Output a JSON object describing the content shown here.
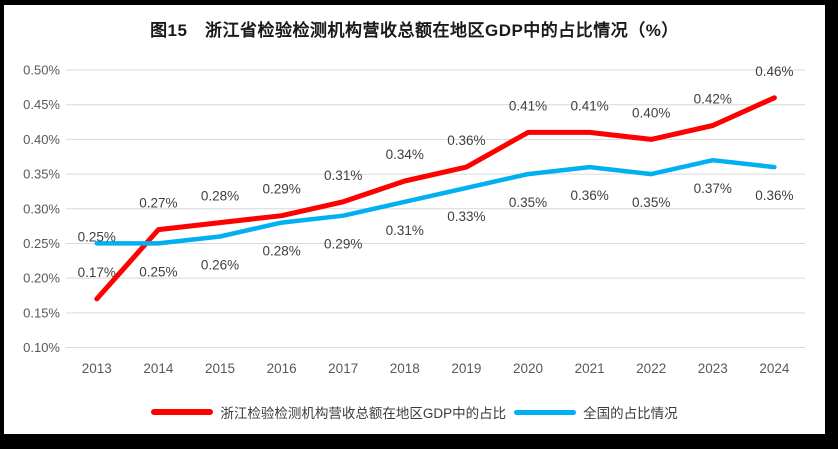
{
  "chart_data": {
    "type": "line",
    "title": "图15　浙江省检验检测机构营收总额在地区GDP中的占比情况（%）",
    "x": [
      "2013",
      "2014",
      "2015",
      "2016",
      "2017",
      "2018",
      "2019",
      "2020",
      "2021",
      "2022",
      "2023",
      "2024"
    ],
    "ylim": [
      0.1,
      0.5
    ],
    "ytick_labels": [
      "0.50%",
      "0.45%",
      "0.40%",
      "0.35%",
      "0.30%",
      "0.25%",
      "0.20%",
      "0.15%",
      "0.10%"
    ],
    "grid": true,
    "legend_position": "bottom",
    "series": [
      {
        "name": "浙江检验检测机构营收总额在地区GDP中的占比",
        "color": "#FF0000",
        "stroke_width": 5,
        "values": [
          0.17,
          0.27,
          0.28,
          0.29,
          0.31,
          0.34,
          0.36,
          0.41,
          0.41,
          0.4,
          0.42,
          0.46
        ],
        "data_labels": [
          "0.17%",
          "0.27%",
          "0.28%",
          "0.29%",
          "0.31%",
          "0.34%",
          "0.36%",
          "0.41%",
          "0.41%",
          "0.40%",
          "0.42%",
          "0.46%"
        ],
        "label_offset": -22,
        "label_offset_overrides": {}
      },
      {
        "name": "全国的占比情况",
        "color": "#00B0F0",
        "stroke_width": 4.5,
        "values": [
          0.25,
          0.25,
          0.26,
          0.28,
          0.29,
          0.31,
          0.33,
          0.35,
          0.36,
          0.35,
          0.37,
          0.36
        ],
        "data_labels": [
          "0.25%",
          "0.25%",
          "0.26%",
          "0.28%",
          "0.29%",
          "0.31%",
          "0.33%",
          "0.35%",
          "0.36%",
          "0.35%",
          "0.37%",
          "0.36%"
        ],
        "label_offset": 33,
        "label_offset_overrides": {
          "0": -2
        }
      }
    ]
  },
  "colors": {
    "series_zhejiang": "#FF0000",
    "series_national": "#00B0F0",
    "gridline": "#d9d9d9",
    "axis_text": "#595959",
    "data_label_text": "#3f3f3f",
    "frame_border": "#000000",
    "background": "#ffffff"
  }
}
